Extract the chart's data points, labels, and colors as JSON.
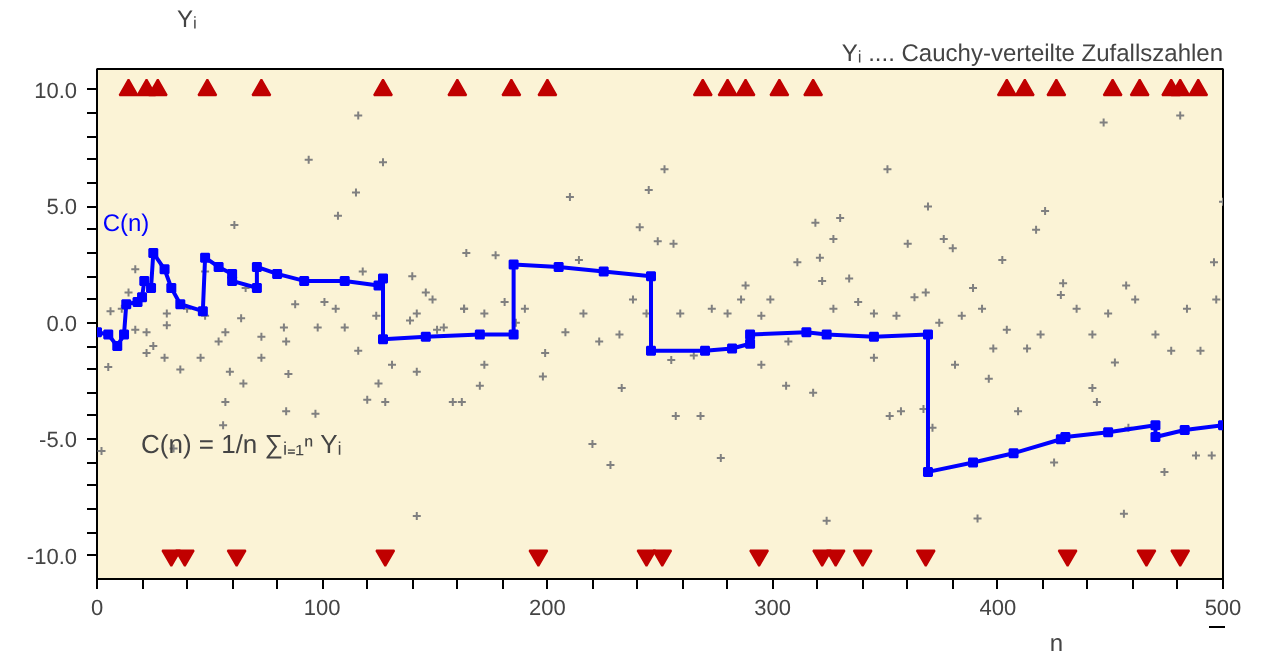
{
  "chart_data": {
    "type": "scatter",
    "title": "Yᵢ .... Cauchy-verteilte Zufallszahlen",
    "ylabel": "Yᵢ",
    "xlabel": "n",
    "annotations": [
      "C(n) = 1/n ∑ᵢ₌₁ⁿ Yᵢ"
    ],
    "xlim": [
      0,
      500
    ],
    "ylim": [
      -11,
      10.9
    ],
    "xticks": [
      0,
      {
        "value": 20,
        "label": null
      },
      {
        "value": 40,
        "label": null
      },
      {
        "value": 60,
        "label": null
      },
      {
        "value": 80,
        "label": null
      },
      100,
      {
        "value": 120,
        "label": null
      },
      {
        "value": 140,
        "label": null
      },
      {
        "value": 160,
        "label": null
      },
      {
        "value": 180,
        "label": null
      },
      200,
      {
        "value": 220,
        "label": null
      },
      {
        "value": 240,
        "label": null
      },
      {
        "value": 260,
        "label": null
      },
      {
        "value": 280,
        "label": null
      },
      300,
      {
        "value": 320,
        "label": null
      },
      {
        "value": 340,
        "label": null
      },
      {
        "value": 360,
        "label": null
      },
      {
        "value": 380,
        "label": null
      },
      400,
      {
        "value": 420,
        "label": null
      },
      {
        "value": 440,
        "label": null
      },
      {
        "value": 460,
        "label": null
      },
      {
        "value": 480,
        "label": null
      },
      500
    ],
    "yticks": [
      {
        "value": -10,
        "label": "-10.0"
      },
      {
        "value": -9,
        "label": null
      },
      {
        "value": -8,
        "label": null
      },
      {
        "value": -7,
        "label": null
      },
      {
        "value": -6,
        "label": null
      },
      {
        "value": -5,
        "label": "-5.0"
      },
      {
        "value": -4,
        "label": null
      },
      {
        "value": -3,
        "label": null
      },
      {
        "value": -2,
        "label": null
      },
      {
        "value": -1,
        "label": null
      },
      {
        "value": 0,
        "label": "0.0"
      },
      {
        "value": 1,
        "label": null
      },
      {
        "value": 2,
        "label": null
      },
      {
        "value": 3,
        "label": null
      },
      {
        "value": 4,
        "label": null
      },
      {
        "value": 5,
        "label": "5.0"
      },
      {
        "value": 6,
        "label": null
      },
      {
        "value": 7,
        "label": null
      },
      {
        "value": 8,
        "label": null
      },
      {
        "value": 9,
        "label": null
      },
      {
        "value": 10,
        "label": "10.0"
      }
    ],
    "grid": false,
    "series": [
      {
        "marker": "cross",
        "color": "#808080",
        "x": [
          2,
          5,
          6,
          11,
          17,
          17,
          22,
          25,
          30,
          31,
          34,
          37,
          46,
          48,
          54,
          56,
          57,
          59,
          61,
          65,
          66,
          73,
          84,
          84,
          85,
          94,
          97,
          101,
          107,
          110,
          115,
          116,
          118,
          120,
          125,
          127,
          128,
          131,
          140,
          142,
          142,
          149,
          158,
          162,
          164,
          170,
          172,
          177,
          186,
          198,
          210,
          214,
          220,
          228,
          233,
          241,
          245,
          249,
          252,
          256,
          257,
          268,
          277,
          288,
          295,
          306,
          311,
          318,
          319,
          321,
          324,
          322,
          327,
          330,
          345,
          351,
          352,
          357,
          360,
          367,
          369,
          371,
          376,
          380,
          381,
          391,
          396,
          402,
          409,
          417,
          421,
          425,
          429,
          442,
          444,
          447,
          452,
          456,
          458,
          474,
          481,
          488,
          495,
          496,
          500,
          327,
          334,
          338,
          345,
          355,
          363,
          368,
          374,
          384,
          389,
          393,
          398,
          404,
          413,
          419,
          428,
          435,
          442,
          449,
          457,
          461,
          470,
          477,
          484,
          490,
          497,
          142,
          151,
          163,
          172,
          181,
          190,
          199,
          208,
          216,
          223,
          232,
          238,
          244,
          255,
          259,
          265,
          273,
          280,
          286,
          295,
          299,
          307,
          14,
          22,
          31,
          40,
          48,
          57,
          64,
          73,
          83,
          88,
          98,
          106,
          116,
          124,
          139,
          146,
          154,
          163
        ],
        "values": [
          -5.5,
          -1.9,
          0.5,
          0.6,
          2.3,
          -0.3,
          -1.3,
          -1.0,
          -1.5,
          0.4,
          -5.4,
          -2.0,
          -1.5,
          2.2,
          -0.8,
          -4.4,
          -3.4,
          -2.1,
          4.2,
          -2.6,
          1.5,
          -1.5,
          -0.8,
          -3.8,
          -2.2,
          7.0,
          -3.9,
          0.9,
          4.6,
          -0.2,
          5.6,
          8.9,
          2.2,
          -3.3,
          -2.6,
          6.9,
          -3.4,
          -1.8,
          2.0,
          -2.1,
          -8.3,
          1.0,
          -3.4,
          -3.4,
          3.0,
          -2.7,
          -1.8,
          2.9,
          0.0,
          -2.3,
          5.4,
          2.7,
          -5.2,
          -6.1,
          -2.8,
          4.1,
          5.7,
          3.5,
          6.6,
          3.4,
          -4.0,
          -4.0,
          -5.8,
          1.6,
          -1.8,
          -2.7,
          2.6,
          -3.0,
          4.3,
          2.8,
          -8.5,
          1.8,
          3.6,
          4.5,
          -1.5,
          6.6,
          -4.0,
          -3.8,
          3.4,
          -3.7,
          5.0,
          -4.5,
          3.6,
          3.2,
          -1.8,
          -8.4,
          -2.4,
          2.7,
          -3.8,
          4.0,
          4.8,
          -6.0,
          1.7,
          -2.8,
          -3.4,
          8.6,
          -1.7,
          -8.2,
          -4.5,
          -6.4,
          8.9,
          -5.7,
          -5.7,
          2.6,
          5.2,
          0.6,
          1.9,
          0.9,
          0.4,
          0.3,
          1.1,
          1.3,
          0.0,
          0.3,
          1.5,
          0.6,
          -1.1,
          -0.3,
          -1.1,
          -0.5,
          1.2,
          0.6,
          -0.5,
          0.4,
          1.6,
          1.0,
          -0.5,
          -1.2,
          0.6,
          -1.2,
          1.0,
          0.4,
          -0.3,
          0.6,
          0.4,
          0.9,
          0.6,
          -1.3,
          -0.4,
          0.4,
          -0.8,
          -0.5,
          1.0,
          0.4,
          -1.6,
          0.4,
          -1.4,
          0.6,
          0.4,
          1.0,
          0.3,
          1.0,
          -0.8,
          1.3,
          -0.4,
          -0.1,
          0.6,
          0.3,
          -0.4,
          0.2,
          -0.6,
          -0.2,
          0.8,
          -0.2,
          0.6,
          -1.2,
          0.3,
          0.1,
          1.3,
          -0.2,
          0.6
        ]
      },
      {
        "marker": "triangle",
        "color": "#c00000",
        "x": [
          14,
          22,
          27,
          49,
          73,
          127,
          160,
          184,
          200,
          269,
          280,
          288,
          303,
          318,
          404,
          412,
          426,
          451,
          463,
          477,
          481,
          489
        ],
        "values": [
          10,
          10,
          10,
          10,
          10,
          10,
          10,
          10,
          10,
          10,
          10,
          10,
          10,
          10,
          10,
          10,
          10,
          10,
          10,
          10,
          10,
          10
        ]
      },
      {
        "marker": "triangle",
        "color": "#c00000",
        "x": [
          33,
          39,
          62,
          128,
          196,
          244,
          251,
          294,
          322,
          328,
          340,
          368,
          431,
          466,
          481
        ],
        "values": [
          -10,
          -10,
          -10,
          -10,
          -10,
          -10,
          -10,
          -10,
          -10,
          -10,
          -10,
          -10,
          -10,
          -10,
          -10
        ]
      },
      {
        "type": "line",
        "name": "C(n)",
        "marker": "square",
        "color": "#0000ff",
        "x": [
          0,
          5,
          9,
          12,
          13,
          18,
          20,
          21,
          24,
          25,
          30,
          33,
          37,
          47,
          48,
          54,
          60,
          60,
          71,
          71,
          80,
          92,
          110,
          125,
          127,
          127,
          146,
          170,
          185,
          185,
          205,
          225,
          246,
          246,
          270,
          282,
          290,
          290,
          315,
          324,
          345,
          369,
          369,
          389,
          407,
          428,
          430,
          449,
          470,
          470,
          483,
          500
        ],
        "values": [
          -0.4,
          -0.5,
          -1.0,
          -0.5,
          0.8,
          0.9,
          1.1,
          1.8,
          1.5,
          3.0,
          2.3,
          1.5,
          0.8,
          0.5,
          2.8,
          2.4,
          2.1,
          1.8,
          1.5,
          2.4,
          2.1,
          1.8,
          1.8,
          1.6,
          1.9,
          -0.7,
          -0.6,
          -0.5,
          -0.5,
          2.5,
          2.4,
          2.2,
          2.0,
          -1.2,
          -1.2,
          -1.1,
          -0.9,
          -0.5,
          -0.4,
          -0.5,
          -0.6,
          -0.5,
          -6.4,
          -6.0,
          -5.6,
          -5.0,
          -4.9,
          -4.7,
          -4.4,
          -4.9,
          -4.6,
          -4.4
        ]
      }
    ]
  }
}
